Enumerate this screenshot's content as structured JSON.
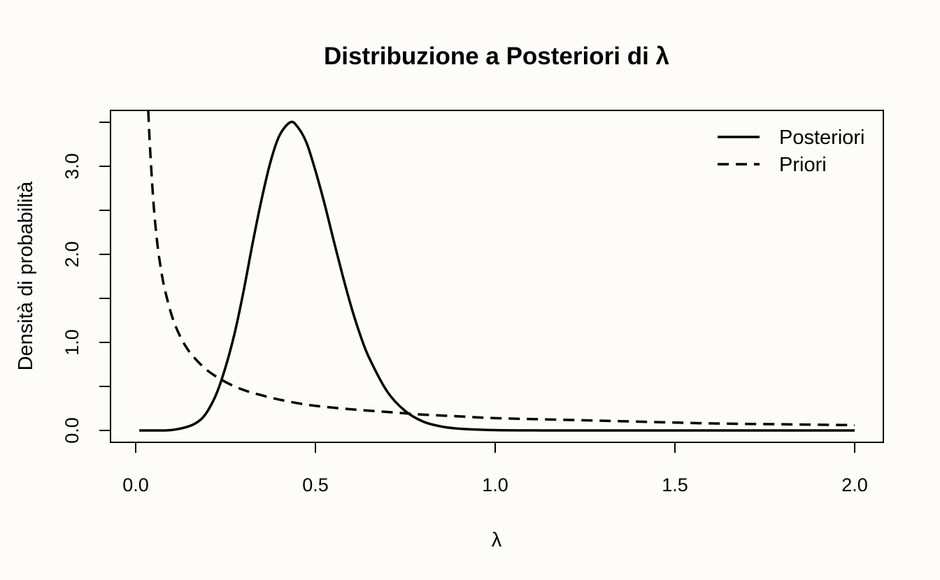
{
  "chart_data": {
    "type": "line",
    "title": "Distribuzione a Posteriori di λ",
    "xlabel": "λ",
    "ylabel": "Densità di probabilità",
    "xlim": [
      0.0,
      2.0
    ],
    "ylim": [
      0.0,
      3.5
    ],
    "grid": false,
    "legend_position": "top-right",
    "x_ticks": [
      0.0,
      0.5,
      1.0,
      1.5,
      2.0
    ],
    "x_tick_labels": [
      "0.0",
      "0.5",
      "1.0",
      "1.5",
      "2.0"
    ],
    "y_ticks": [
      0.0,
      0.5,
      1.0,
      1.5,
      2.0,
      2.5,
      3.0,
      3.5
    ],
    "y_tick_labels": [
      "0.0",
      "",
      "1.0",
      "",
      "2.0",
      "",
      "3.0",
      ""
    ],
    "series": [
      {
        "name": "Posteriori",
        "style": "solid",
        "x": [
          0.01,
          0.05,
          0.1,
          0.15,
          0.18,
          0.2,
          0.225,
          0.25,
          0.275,
          0.3,
          0.325,
          0.35,
          0.375,
          0.4,
          0.43,
          0.45,
          0.475,
          0.5,
          0.525,
          0.55,
          0.575,
          0.6,
          0.625,
          0.65,
          0.7,
          0.75,
          0.8,
          0.85,
          0.9,
          1.0,
          1.1,
          1.2,
          1.4,
          1.6,
          1.8,
          2.0
        ],
        "y": [
          0.0,
          0.0,
          0.005,
          0.05,
          0.12,
          0.22,
          0.42,
          0.72,
          1.1,
          1.58,
          2.12,
          2.62,
          3.05,
          3.35,
          3.5,
          3.45,
          3.27,
          2.95,
          2.58,
          2.17,
          1.77,
          1.4,
          1.08,
          0.82,
          0.44,
          0.22,
          0.1,
          0.045,
          0.02,
          0.004,
          0.001,
          0.0,
          0.0,
          0.0,
          0.0,
          0.0
        ]
      },
      {
        "name": "Priori",
        "style": "dashed",
        "x": [
          0.035,
          0.04,
          0.05,
          0.06,
          0.07,
          0.08,
          0.1,
          0.12,
          0.14,
          0.16,
          0.2,
          0.25,
          0.3,
          0.35,
          0.4,
          0.45,
          0.5,
          0.6,
          0.7,
          0.8,
          0.9,
          1.0,
          1.2,
          1.4,
          1.6,
          1.8,
          2.0
        ],
        "y": [
          3.63,
          3.2,
          2.56,
          2.13,
          1.84,
          1.62,
          1.31,
          1.1,
          0.95,
          0.84,
          0.68,
          0.55,
          0.46,
          0.4,
          0.35,
          0.31,
          0.28,
          0.24,
          0.21,
          0.18,
          0.16,
          0.14,
          0.12,
          0.1,
          0.08,
          0.07,
          0.06
        ]
      }
    ]
  }
}
